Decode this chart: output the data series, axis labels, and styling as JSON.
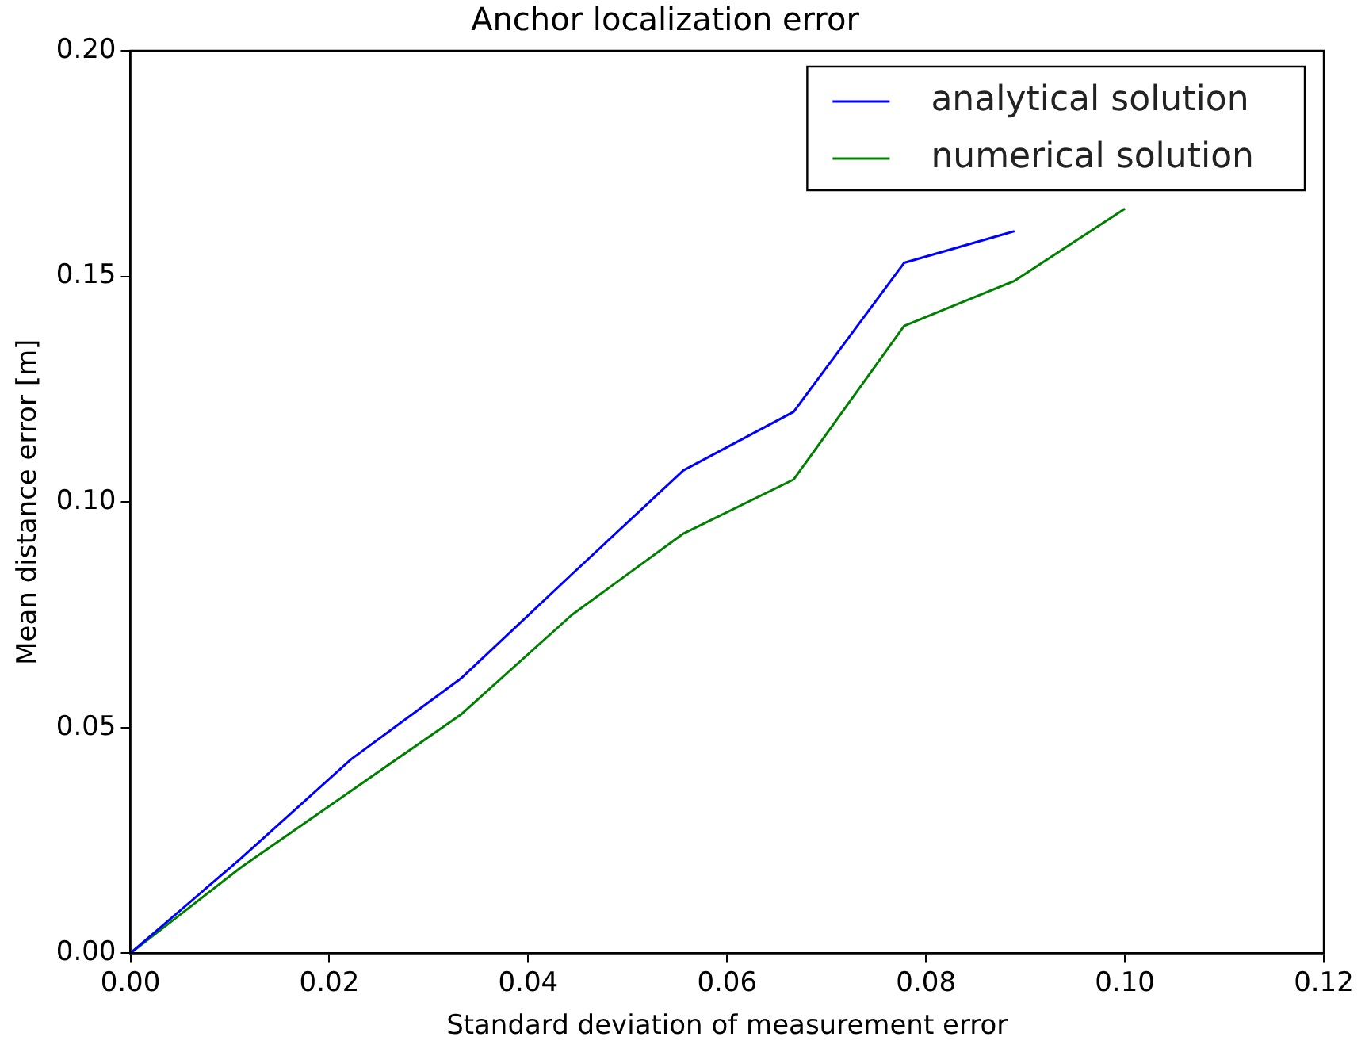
{
  "chart_data": {
    "type": "line",
    "title": "Anchor localization error",
    "xlabel": "Standard deviation of measurement error",
    "ylabel": "Mean distance error [m]",
    "x": [
      0,
      0.0111,
      0.0222,
      0.0333,
      0.0444,
      0.0556,
      0.0667,
      0.0778,
      0.0889,
      0.1
    ],
    "series": [
      {
        "name": "analytical solution",
        "color": "#0000ff",
        "values": [
          0,
          0.021,
          0.043,
          0.061,
          0.084,
          0.107,
          0.12,
          0.153,
          0.16,
          null
        ]
      },
      {
        "name": "numerical solution",
        "color": "#008000",
        "values": [
          0,
          0.019,
          0.036,
          0.053,
          0.075,
          0.093,
          0.105,
          0.139,
          0.149,
          0.165
        ]
      }
    ],
    "xlim": [
      0,
      0.12
    ],
    "xticks": [
      {
        "value": 0,
        "label": "0.00"
      },
      {
        "value": 0.02,
        "label": "0.02"
      },
      {
        "value": 0.04,
        "label": "0.04"
      },
      {
        "value": 0.06,
        "label": "0.06"
      },
      {
        "value": 0.08,
        "label": "0.08"
      },
      {
        "value": 0.1,
        "label": "0.10"
      },
      {
        "value": 0.12,
        "label": "0.12"
      }
    ],
    "ylim": [
      0,
      0.2
    ],
    "yticks": [
      {
        "value": 0,
        "label": "0.00"
      },
      {
        "value": 0.05,
        "label": "0.05"
      },
      {
        "value": 0.1,
        "label": "0.10"
      },
      {
        "value": 0.15,
        "label": "0.15"
      },
      {
        "value": 0.2,
        "label": "0.20"
      }
    ],
    "grid": false,
    "legend": "top right",
    "marker": "none",
    "line_style": "solid"
  }
}
